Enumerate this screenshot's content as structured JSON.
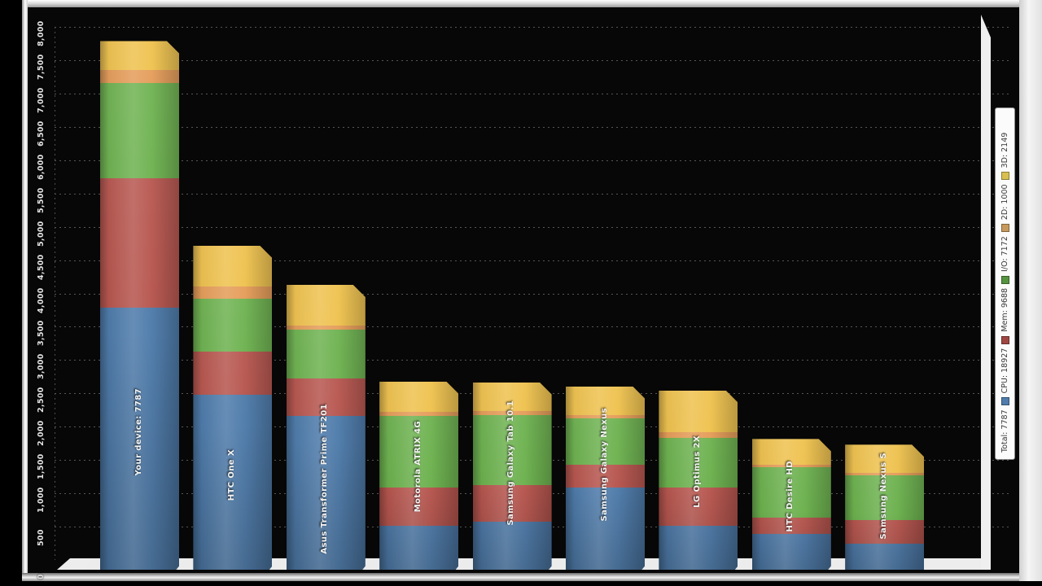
{
  "window": {
    "frame_color": "#dcdcdc",
    "panel_bg": "#070707"
  },
  "chart_data": {
    "type": "bar",
    "stacked": true,
    "title": "",
    "xlabel": "",
    "ylabel": "",
    "ylim": [
      0,
      8000
    ],
    "grid": "dotted horizontal lines every 500, dark background",
    "legend_position": "right-vertical-strip",
    "y_ticks": [
      "0",
      "500",
      "1,000",
      "1,500",
      "2,000",
      "2,500",
      "3,000",
      "3,500",
      "4,000",
      "4,500",
      "5,000",
      "5,500",
      "6,000",
      "6,500",
      "7,000",
      "7,500",
      "8,000"
    ],
    "series_names": [
      "CPU",
      "Mem",
      "I/O",
      "2D",
      "3D"
    ],
    "series_colors": [
      "#4f7cab",
      "#b7564f",
      "#6cb14e",
      "#e49a55",
      "#eec04a"
    ],
    "legend": [
      {
        "label": "Total: 7787",
        "color": null
      },
      {
        "label": "CPU: 18927",
        "color": "#4f7cab"
      },
      {
        "label": "Mem: 9688",
        "color": "#9e4742"
      },
      {
        "label": "I/O: 7172",
        "color": "#569340"
      },
      {
        "label": "2D: 1000",
        "color": "#c79a5b"
      },
      {
        "label": "3D: 2149",
        "color": "#d8c050"
      }
    ],
    "bars": [
      {
        "label": "Your device: 7787",
        "total": 7787,
        "values": [
          3785,
          1938,
          1434,
          200,
          430
        ]
      },
      {
        "label": "HTC One X",
        "total": 4714,
        "values": [
          2485,
          645,
          792,
          183,
          609
        ]
      },
      {
        "label": "Asus Transformer Prime TF201",
        "total": 4129,
        "values": [
          2156,
          572,
          731,
          60,
          610
        ]
      },
      {
        "label": "Motorola ATRIX 4G",
        "total": 2680,
        "values": [
          512,
          572,
          1072,
          61,
          463
        ]
      },
      {
        "label": "Samsung Galaxy Tab 10.1",
        "total": 2668,
        "values": [
          572,
          549,
          1059,
          50,
          438
        ]
      },
      {
        "label": "Samsung Galaxy Nexus",
        "total": 2607,
        "values": [
          1084,
          341,
          694,
          61,
          427
        ]
      },
      {
        "label": "LG Optimus 2X",
        "total": 2546,
        "values": [
          512,
          572,
          743,
          85,
          634
        ]
      },
      {
        "label": "HTC Desire HD",
        "total": 1815,
        "values": [
          390,
          243,
          756,
          40,
          386
        ]
      },
      {
        "label": "Samsung Nexus S",
        "total": 1730,
        "values": [
          244,
          353,
          670,
          40,
          423
        ]
      }
    ]
  }
}
